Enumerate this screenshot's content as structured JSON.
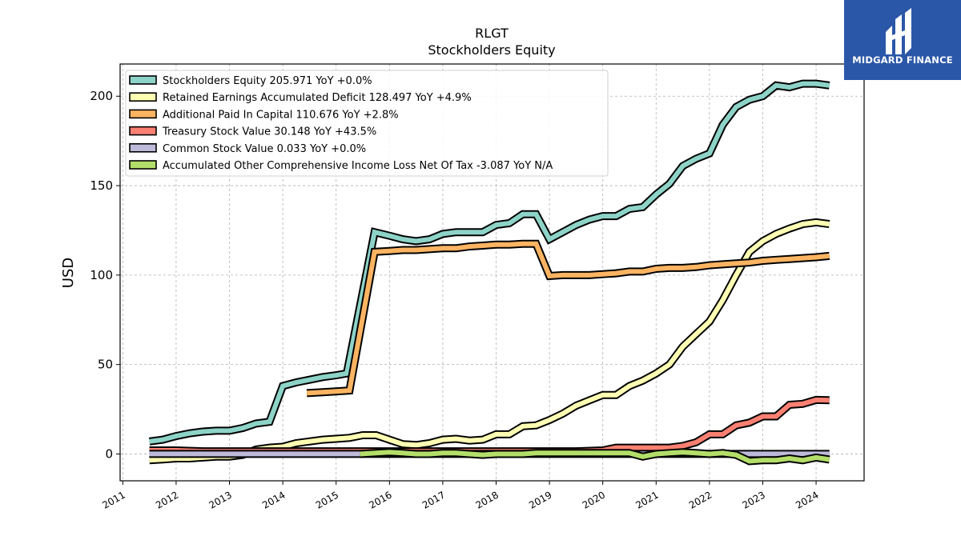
{
  "chart_data": {
    "type": "line",
    "title": "RLGT",
    "subtitle": "Stockholders  Equity",
    "ylabel": "USD",
    "xlim": [
      2010.95,
      2024.9
    ],
    "ylim": [
      -15,
      218
    ],
    "grid": true,
    "legend_position": "top-left",
    "y_ticks": [
      0,
      50,
      100,
      150,
      200
    ],
    "x_ticks": [
      "2011",
      "2012",
      "2013",
      "2014",
      "2015",
      "2016",
      "2017",
      "2018",
      "2019",
      "2020",
      "2021",
      "2022",
      "2023",
      "2024"
    ],
    "series": [
      {
        "name": "Stockholders Equity",
        "legend_label": "Stockholders Equity  205.971 YoY +0.0%",
        "color": "#8dd3c7",
        "x": [
          2011.5,
          2011.75,
          2012.0,
          2012.25,
          2012.5,
          2012.75,
          2013.0,
          2013.25,
          2013.5,
          2013.75,
          2014.0,
          2014.25,
          2014.5,
          2014.75,
          2015.0,
          2015.2,
          2015.72,
          2016.0,
          2016.25,
          2016.5,
          2016.75,
          2017.0,
          2017.25,
          2017.5,
          2017.75,
          2018.0,
          2018.25,
          2018.5,
          2018.75,
          2019.0,
          2019.25,
          2019.5,
          2019.75,
          2020.0,
          2020.25,
          2020.5,
          2020.75,
          2021.0,
          2021.25,
          2021.5,
          2021.75,
          2022.0,
          2022.25,
          2022.5,
          2022.75,
          2023.0,
          2023.25,
          2023.5,
          2023.75,
          2024.0,
          2024.25
        ],
        "values": [
          7,
          8,
          10,
          11.5,
          12.5,
          13,
          13,
          14.5,
          17,
          18,
          38,
          40,
          41.5,
          43,
          44,
          45,
          124,
          122,
          120,
          119,
          120,
          123,
          124,
          124,
          124,
          128,
          129,
          134,
          134,
          120,
          124,
          128,
          131,
          133,
          133,
          137,
          138,
          145,
          151,
          161,
          165,
          168,
          184,
          194,
          198,
          200,
          206,
          205,
          207,
          207,
          206
        ]
      },
      {
        "name": "Retained Earnings Accumulated Deficit",
        "legend_label": "Retained Earnings Accumulated Deficit  128.497 YoY +4.9%",
        "color": "#ffffb3",
        "x": [
          2011.5,
          2011.75,
          2012.0,
          2012.25,
          2012.5,
          2012.75,
          2013.0,
          2013.25,
          2013.5,
          2013.75,
          2014.0,
          2014.25,
          2014.5,
          2014.75,
          2015.0,
          2015.25,
          2015.5,
          2015.75,
          2016.0,
          2016.25,
          2016.5,
          2016.75,
          2017.0,
          2017.25,
          2017.5,
          2017.75,
          2018.0,
          2018.25,
          2018.5,
          2018.75,
          2019.0,
          2019.25,
          2019.5,
          2019.75,
          2020.0,
          2020.25,
          2020.5,
          2020.75,
          2021.0,
          2021.25,
          2021.5,
          2021.75,
          2022.0,
          2022.25,
          2022.5,
          2022.75,
          2023.0,
          2023.25,
          2023.5,
          2023.75,
          2024.0,
          2024.25
        ],
        "values": [
          -3.5,
          -3,
          -2.5,
          -2.5,
          -2,
          -1.5,
          -1.5,
          -0.5,
          2.5,
          3.5,
          4,
          6,
          7,
          8,
          8.5,
          9,
          10.5,
          10.5,
          8,
          5.5,
          5,
          6,
          8,
          8.5,
          7.5,
          8,
          11,
          11,
          15.5,
          16,
          19,
          22.5,
          27,
          30,
          33,
          33,
          38,
          41,
          45,
          50,
          60,
          67,
          74,
          86,
          100,
          113,
          119,
          123,
          126,
          128.5,
          129.5,
          128.5
        ]
      },
      {
        "name": "Additional Paid In Capital",
        "legend_label": "Additional Paid In Capital  110.676 YoY +2.8%",
        "color": "#fdb462",
        "x": [
          2014.45,
          2014.75,
          2015.0,
          2015.25,
          2015.72,
          2016.0,
          2016.25,
          2016.5,
          2016.75,
          2017.0,
          2017.25,
          2017.5,
          2017.75,
          2018.0,
          2018.25,
          2018.5,
          2018.75,
          2019.0,
          2019.25,
          2019.5,
          2019.75,
          2020.0,
          2020.25,
          2020.5,
          2020.75,
          2021.0,
          2021.25,
          2021.5,
          2021.75,
          2022.0,
          2022.25,
          2022.5,
          2022.75,
          2023.0,
          2023.25,
          2023.5,
          2023.75,
          2024.0,
          2024.25
        ],
        "values": [
          34,
          34.5,
          35,
          35.5,
          113,
          113.5,
          114,
          114,
          114.5,
          115,
          115,
          116,
          116.5,
          117,
          117,
          117.5,
          117.5,
          99.5,
          100,
          100,
          100,
          100.5,
          101,
          102,
          102,
          103.5,
          104,
          104,
          104.5,
          105.5,
          106,
          106.5,
          107,
          108,
          108.5,
          109,
          109.5,
          110,
          110.7
        ]
      },
      {
        "name": "Treasury Stock Value",
        "legend_label": "Treasury Stock Value  30.148 YoY +43.5%",
        "color": "#fb8072",
        "x": [
          2011.5,
          2011.75,
          2012.0,
          2012.5,
          2013.0,
          2013.5,
          2014.0,
          2014.5,
          2015.0,
          2015.5,
          2016.0,
          2016.5,
          2017.0,
          2017.5,
          2018.0,
          2018.5,
          2019.0,
          2019.5,
          2020.0,
          2020.25,
          2020.5,
          2020.75,
          2021.0,
          2021.25,
          2021.5,
          2021.75,
          2022.0,
          2022.25,
          2022.5,
          2022.75,
          2023.0,
          2023.25,
          2023.5,
          2023.75,
          2024.0,
          2024.25
        ],
        "values": [
          2,
          2,
          2,
          1.5,
          1.5,
          1.5,
          1.5,
          1.5,
          1.5,
          1.5,
          1.5,
          1.5,
          1.5,
          1.5,
          1.5,
          1.5,
          1.5,
          1.5,
          2,
          3.5,
          3.5,
          3.5,
          3.5,
          3.5,
          4.5,
          6.5,
          11,
          11,
          16,
          17.5,
          21,
          21,
          27.5,
          28,
          30.2,
          30.1
        ]
      },
      {
        "name": "Common Stock Value",
        "legend_label": "Common Stock Value  0.033 YoY +0.0%",
        "color": "#bebada",
        "x": [
          2011.5,
          2024.25
        ],
        "values": [
          0.03,
          0.03
        ]
      },
      {
        "name": "Accumulated Other Comprehensive Income Loss Net Of Tax",
        "legend_label": "Accumulated Other Comprehensive Income Loss Net Of Tax  -3.087 YoY N/A",
        "color": "#b3de69",
        "x": [
          2015.45,
          2015.75,
          2016.0,
          2016.25,
          2016.5,
          2016.75,
          2017.0,
          2017.25,
          2017.5,
          2017.75,
          2018.0,
          2018.25,
          2018.5,
          2018.75,
          2019.0,
          2019.25,
          2019.5,
          2019.75,
          2020.0,
          2020.25,
          2020.5,
          2020.75,
          2021.0,
          2021.25,
          2021.5,
          2021.75,
          2022.0,
          2022.25,
          2022.5,
          2022.75,
          2023.0,
          2023.25,
          2023.5,
          2023.75,
          2024.0,
          2024.25
        ],
        "values": [
          0,
          0.5,
          1,
          0.5,
          0,
          0,
          0.5,
          0.5,
          0,
          -0.5,
          0,
          0,
          0,
          0.5,
          0.5,
          0.5,
          0.5,
          0.5,
          0.5,
          0.5,
          0.5,
          -1.5,
          0,
          0.5,
          1,
          0.5,
          0,
          0.5,
          -0.5,
          -4,
          -3.5,
          -3.5,
          -2.5,
          -3.5,
          -2,
          -3.1
        ]
      }
    ]
  },
  "logo": {
    "text": "MIDGARD FINANCE",
    "background": "#2b57a8"
  }
}
